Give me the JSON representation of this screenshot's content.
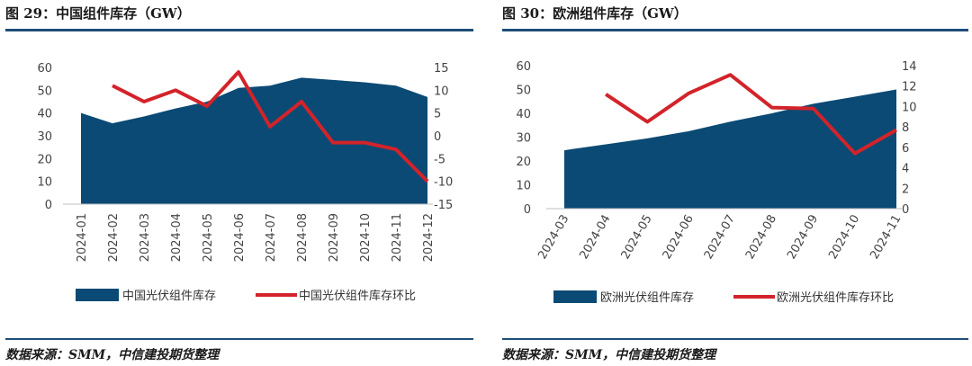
{
  "left": {
    "title": "图 29：中国组件库存（GW）",
    "source": "数据来源：SMM，中信建投期货整理"
  },
  "right": {
    "title": "图 30：欧洲组件库存（GW）",
    "source": "数据来源：SMM，中信建投期货整理"
  },
  "colors": {
    "area": "#0b4a74",
    "line": "#d3232a",
    "rule": "#1f4e79"
  },
  "chart_data": [
    {
      "type": "area",
      "title": "",
      "categories": [
        "2024-01",
        "2024-02",
        "2024-03",
        "2024-04",
        "2024-05",
        "2024-06",
        "2024-07",
        "2024-08",
        "2024-09",
        "2024-10",
        "2024-11",
        "2024-12"
      ],
      "series": [
        {
          "name": "中国光伏组件库存",
          "type": "area",
          "axis": "left",
          "values": [
            40,
            35.5,
            38.5,
            42,
            45,
            51,
            52,
            55.5,
            54.5,
            53.5,
            52,
            47
          ]
        },
        {
          "name": "中国光伏组件库存环比",
          "type": "line",
          "axis": "right",
          "values": [
            null,
            11,
            7.5,
            10,
            6.5,
            14,
            2,
            7.5,
            -1.5,
            -1.5,
            -3,
            -10
          ]
        }
      ],
      "ylim_left": [
        0,
        60
      ],
      "yticks_left": [
        0,
        10,
        20,
        30,
        40,
        50,
        60
      ],
      "ylim_right": [
        -15,
        15
      ],
      "yticks_right": [
        -15,
        -10,
        -5,
        0,
        5,
        10,
        15
      ],
      "legend": "bottom"
    },
    {
      "type": "area",
      "title": "",
      "categories": [
        "2024-03",
        "2024-04",
        "2024-05",
        "2024-06",
        "2024-07",
        "2024-08",
        "2024-09",
        "2024-10",
        "2024-11"
      ],
      "series": [
        {
          "name": "欧洲光伏组件库存",
          "type": "area",
          "axis": "left",
          "values": [
            24.5,
            27,
            29.5,
            32.5,
            36.5,
            40,
            44,
            47,
            50
          ]
        },
        {
          "name": "欧洲光伏组件库存环比",
          "type": "line",
          "axis": "right",
          "values": [
            null,
            11.2,
            8.5,
            11.3,
            13.1,
            9.9,
            9.8,
            5.4,
            7.7
          ]
        }
      ],
      "ylim_left": [
        0,
        60
      ],
      "yticks_left": [
        0,
        10,
        20,
        30,
        40,
        50,
        60
      ],
      "ylim_right": [
        0,
        14
      ],
      "yticks_right": [
        0,
        2,
        4,
        6,
        8,
        10,
        12,
        14
      ],
      "legend": "bottom"
    }
  ]
}
